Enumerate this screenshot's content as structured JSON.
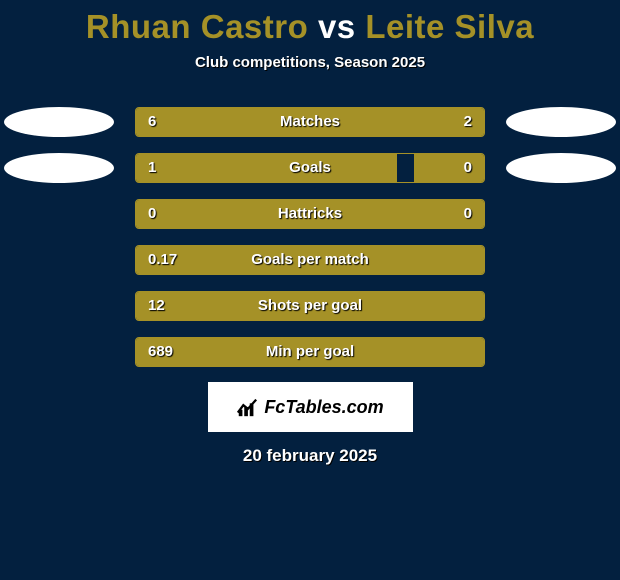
{
  "title": {
    "player1": "Rhuan Castro",
    "vs": "vs",
    "player2": "Leite Silva",
    "color1": "#a59127",
    "color_vs": "#ffffff",
    "color2": "#a59127"
  },
  "subtitle": "Club competitions, Season 2025",
  "bar_color": "#a59127",
  "border_color": "#a59127",
  "background_color": "#03203f",
  "ellipse_color": "#ffffff",
  "rows": [
    {
      "label": "Matches",
      "left": "6",
      "right": "2",
      "left_pct": 75,
      "right_pct": 25,
      "show_ellipse": true
    },
    {
      "label": "Goals",
      "left": "1",
      "right": "0",
      "left_pct": 75,
      "right_pct": 20,
      "show_ellipse": true
    },
    {
      "label": "Hattricks",
      "left": "0",
      "right": "0",
      "left_pct": 100,
      "right_pct": 0,
      "show_ellipse": false
    },
    {
      "label": "Goals per match",
      "left": "0.17",
      "right": "",
      "left_pct": 100,
      "right_pct": 0,
      "show_ellipse": false
    },
    {
      "label": "Shots per goal",
      "left": "12",
      "right": "",
      "left_pct": 100,
      "right_pct": 0,
      "show_ellipse": false
    },
    {
      "label": "Min per goal",
      "left": "689",
      "right": "",
      "left_pct": 100,
      "right_pct": 0,
      "show_ellipse": false
    }
  ],
  "logo_text": "FcTables.com",
  "date": "20 february 2025"
}
